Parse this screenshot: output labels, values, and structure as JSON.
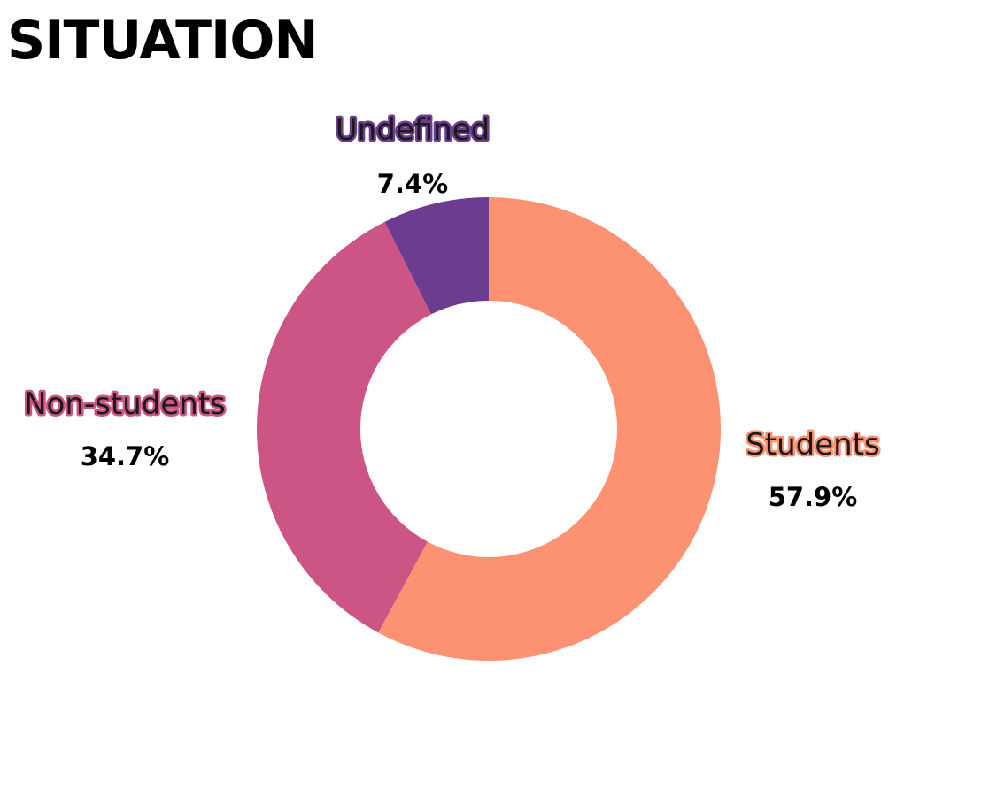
{
  "chart_data": {
    "type": "pie",
    "title": "SITUATION",
    "style": "donut",
    "slices": [
      {
        "label": "Students",
        "value": 57.9,
        "display": "57.9%",
        "color": "#fc9272"
      },
      {
        "label": "Non-students",
        "value": 34.7,
        "display": "34.7%",
        "color": "#cc5585"
      },
      {
        "label": "Undefined",
        "value": 7.4,
        "display": "7.4%",
        "color": "#6b3c8f"
      }
    ],
    "legend": "none"
  }
}
